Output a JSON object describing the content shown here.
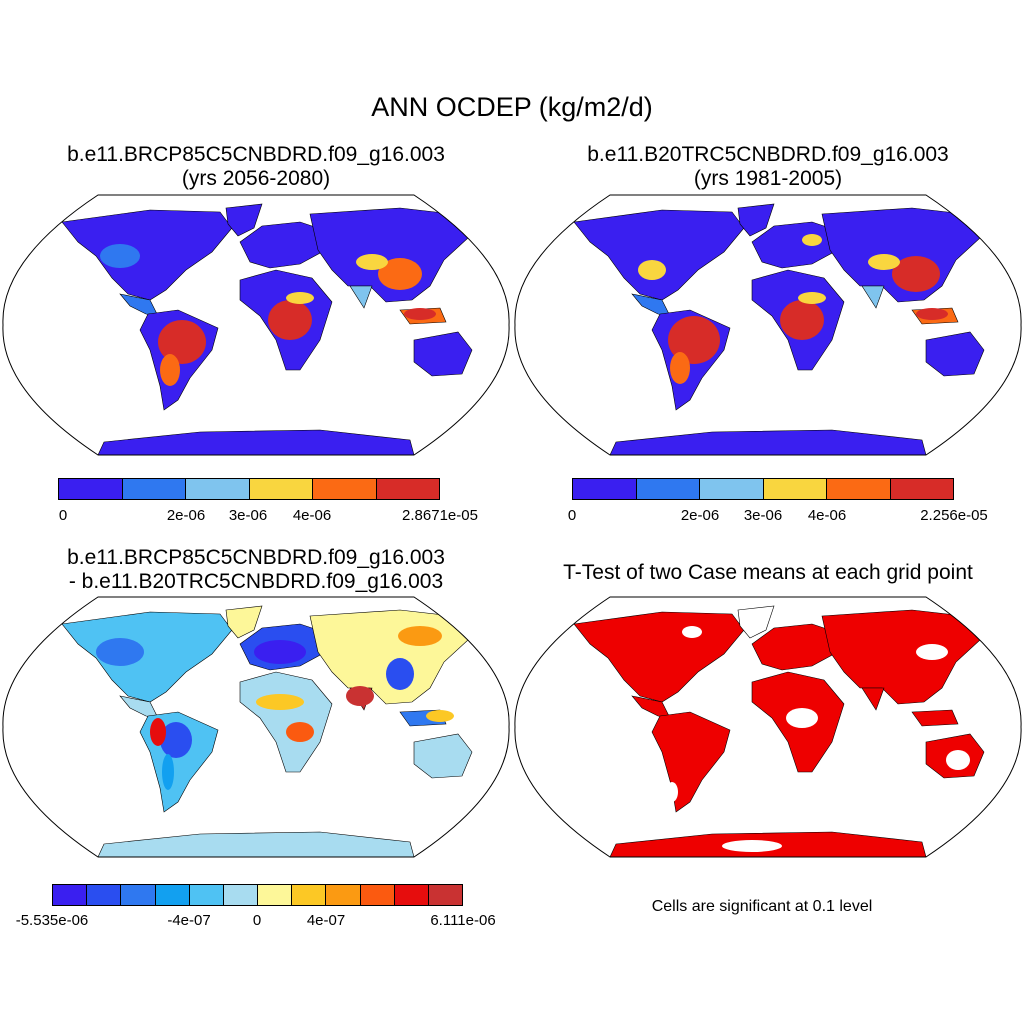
{
  "title": "ANN OCDEP (kg/m2/d)",
  "panels": [
    {
      "line1": "b.e11.BRCP85C5CNBDRD.f09_g16.003",
      "line2": "(yrs 2056-2080)",
      "palette": [
        "#3a1ff0",
        "#2f78f0",
        "#7fc4ee",
        "#f9d63f",
        "#fb6a14",
        "#d72c28"
      ],
      "ticks": [
        "0",
        "2e-06",
        "3e-06",
        "4e-06",
        "2.8671e-05"
      ]
    },
    {
      "line1": "b.e11.B20TRC5CNBDRD.f09_g16.003",
      "line2": "(yrs 1981-2005)",
      "palette": [
        "#3a1ff0",
        "#2f78f0",
        "#7fc4ee",
        "#f9d63f",
        "#fb6a14",
        "#d72c28"
      ],
      "ticks": [
        "0",
        "2e-06",
        "3e-06",
        "4e-06",
        "2.256e-05"
      ]
    },
    {
      "line1": "b.e11.BRCP85C5CNBDRD.f09_g16.003",
      "line2": "- b.e11.B20TRC5CNBDRD.f09_g16.003",
      "palette": [
        "#3a1ff0",
        "#2a4ef0",
        "#2f78f0",
        "#12a0f0",
        "#4fc2f3",
        "#a8dcf0",
        "#fdf799",
        "#fcc825",
        "#fb9a12",
        "#fb5a10",
        "#e60d0d",
        "#c93232"
      ],
      "ticks": [
        "-5.535e-06",
        "-4e-07",
        "0",
        "4e-07",
        "6.111e-06"
      ]
    },
    {
      "line1": "T-Test of two Case means at each grid point",
      "note": "Cells are significant at 0.1 level",
      "color": "#ee0000"
    }
  ]
}
